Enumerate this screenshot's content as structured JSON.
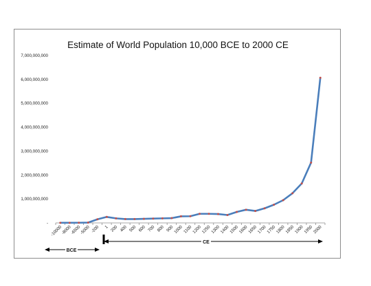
{
  "chart_data": {
    "type": "line",
    "title": "Estimate of World Population 10,000 BCE to 2000 CE",
    "xlabel": "",
    "ylabel": "",
    "ylim": [
      0,
      7000000000
    ],
    "y_ticks": [
      "-",
      "1,000,000,000",
      "2,000,000,000",
      "3,000,000,000",
      "4,000,000,000",
      "5,000,000,000",
      "6,000,000,000",
      "7,000,000,000"
    ],
    "categories": [
      "-10000",
      "-8000",
      "-6500",
      "-5000",
      "-200",
      "1",
      "200",
      "400",
      "500",
      "600",
      "700",
      "800",
      "900",
      "1000",
      "1100",
      "1200",
      "1250",
      "1300",
      "1400",
      "1500",
      "1600",
      "1650",
      "1700",
      "1750",
      "1800",
      "1850",
      "1900",
      "1950",
      "2000"
    ],
    "series": [
      {
        "values": [
          4000000,
          5000000,
          7000000,
          14000000,
          150000000,
          250000000,
          190000000,
          160000000,
          160000000,
          170000000,
          180000000,
          190000000,
          200000000,
          275000000,
          280000000,
          380000000,
          380000000,
          370000000,
          330000000,
          460000000,
          550000000,
          500000000,
          610000000,
          760000000,
          950000000,
          1240000000,
          1650000000,
          2520000000,
          6070000000
        ]
      }
    ],
    "line_color": "#4a7ebb",
    "marker_color": "#c0504d",
    "grid": false,
    "legend": "none",
    "era_labels": {
      "bce": "BCE",
      "ce": "CE"
    }
  }
}
